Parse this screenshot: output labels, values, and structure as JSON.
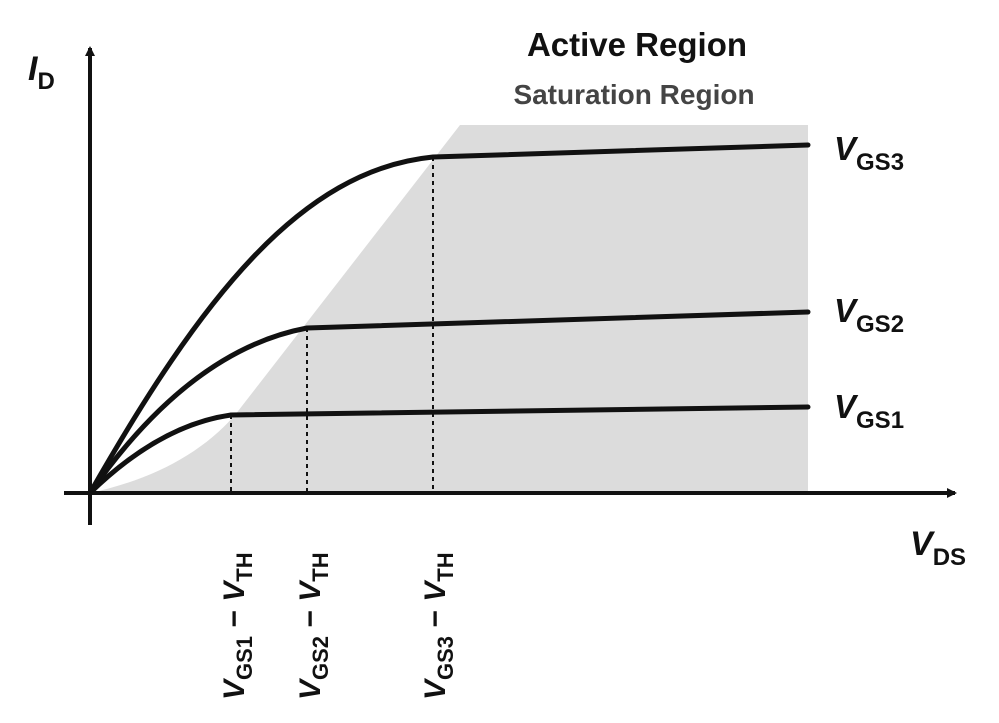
{
  "title": "Active Region",
  "subtitle": "Saturation Region",
  "axes": {
    "y": {
      "symbol": "I",
      "sub": "D"
    },
    "x": {
      "symbol": "V",
      "sub": "DS"
    }
  },
  "curves": [
    {
      "symbol": "V",
      "sub": "GS1"
    },
    {
      "symbol": "V",
      "sub": "GS2"
    },
    {
      "symbol": "V",
      "sub": "GS3"
    }
  ],
  "ticks": [
    {
      "v1": "V",
      "sub1": "GS1",
      "dash": " − ",
      "v2": "V",
      "sub2": "TH"
    },
    {
      "v1": "V",
      "sub1": "GS2",
      "dash": " − ",
      "v2": "V",
      "sub2": "TH"
    },
    {
      "v1": "V",
      "sub1": "GS3",
      "dash": " − ",
      "v2": "V",
      "sub2": "TH"
    }
  ],
  "colors": {
    "curve": "#111111",
    "region": "#dcdcdc",
    "axis": "#111111"
  }
}
